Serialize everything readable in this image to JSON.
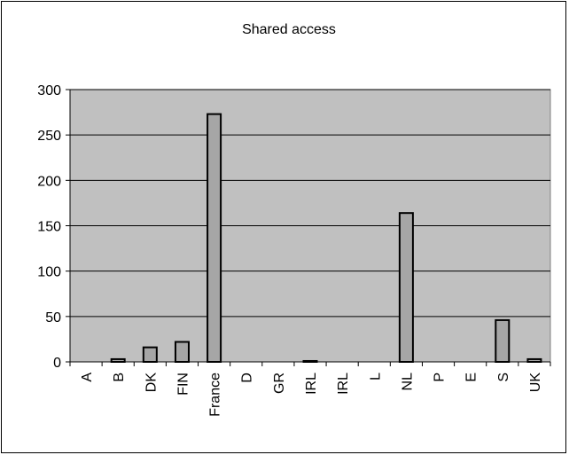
{
  "chart_data": {
    "type": "bar",
    "title": "Shared access",
    "xlabel": "",
    "ylabel": "",
    "categories": [
      "A",
      "B",
      "DK",
      "FIN",
      "France",
      "D",
      "GR",
      "IRL",
      "IRL",
      "L",
      "NL",
      "P",
      "E",
      "S",
      "UK"
    ],
    "values": [
      0,
      3,
      16,
      22,
      273,
      0,
      0,
      1,
      0,
      0,
      164,
      0,
      0,
      46,
      3
    ],
    "ylim": [
      0,
      300
    ],
    "yticks": [
      0,
      50,
      100,
      150,
      200,
      250,
      300
    ],
    "grid": true,
    "legend": "none",
    "colors": {
      "plot_background": "#c0c0c0",
      "bar_fill": "#a6a6a6",
      "bar_stroke": "#000000",
      "gridline": "#000000"
    }
  }
}
